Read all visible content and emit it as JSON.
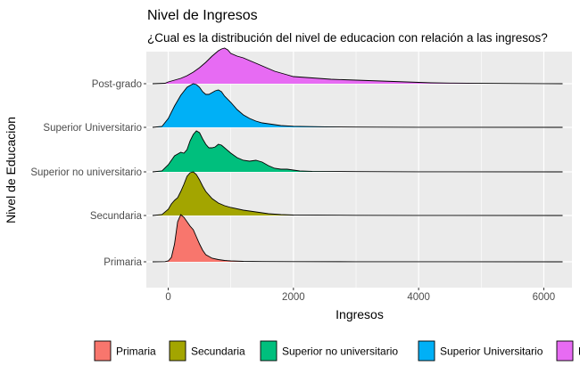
{
  "chart_data": {
    "type": "area",
    "subtype": "ridgeline-density",
    "title": "Nivel de Ingresos",
    "subtitle": "¿Cual es la distribución del nivel de educacion con relación a las ingresos?",
    "xlabel": "Ingresos",
    "ylabel": "Nivel de Educacion",
    "xlim": [
      -350,
      6450
    ],
    "x_ticks": [
      0,
      2000,
      4000,
      6000
    ],
    "x_tick_labels": [
      "0",
      "2000",
      "4000",
      "6000"
    ],
    "categories": [
      "Primaria",
      "Secundaria",
      "Superior no universitario",
      "Superior Universitario",
      "Post-grado"
    ],
    "legend_position": "bottom",
    "legend_labels": [
      "Primaria",
      "Secundaria",
      "Superior no universitario",
      "Superior Universitario",
      "Post-grado"
    ],
    "grid": true,
    "x_range_drawn": [
      -250,
      6300
    ],
    "series": [
      {
        "name": "Primaria",
        "color": "#F8766D",
        "points": [
          [
            -250,
            0
          ],
          [
            -50,
            0.2
          ],
          [
            0,
            1
          ],
          [
            50,
            5
          ],
          [
            100,
            20
          ],
          [
            150,
            45
          ],
          [
            200,
            53
          ],
          [
            250,
            50
          ],
          [
            300,
            45
          ],
          [
            350,
            40
          ],
          [
            400,
            36
          ],
          [
            450,
            28
          ],
          [
            500,
            20
          ],
          [
            550,
            13
          ],
          [
            600,
            8
          ],
          [
            700,
            4
          ],
          [
            800,
            2.5
          ],
          [
            900,
            1.5
          ],
          [
            1000,
            1
          ],
          [
            1200,
            0.5
          ],
          [
            1500,
            0.3
          ],
          [
            2000,
            0.2
          ],
          [
            3000,
            0.1
          ],
          [
            4000,
            0.05
          ],
          [
            6300,
            0
          ]
        ]
      },
      {
        "name": "Secundaria",
        "color": "#A3A500",
        "points": [
          [
            -250,
            0
          ],
          [
            -100,
            1
          ],
          [
            0,
            7
          ],
          [
            50,
            13
          ],
          [
            100,
            17
          ],
          [
            150,
            20
          ],
          [
            200,
            27
          ],
          [
            250,
            35
          ],
          [
            300,
            44
          ],
          [
            350,
            48
          ],
          [
            400,
            49
          ],
          [
            450,
            46
          ],
          [
            500,
            40
          ],
          [
            550,
            33
          ],
          [
            600,
            27
          ],
          [
            700,
            19
          ],
          [
            800,
            14
          ],
          [
            900,
            11
          ],
          [
            1000,
            9
          ],
          [
            1200,
            6
          ],
          [
            1400,
            4
          ],
          [
            1600,
            2
          ],
          [
            1800,
            1
          ],
          [
            2000,
            0.5
          ],
          [
            3000,
            0.2
          ],
          [
            4000,
            0.1
          ],
          [
            6300,
            0
          ]
        ]
      },
      {
        "name": "Superior no universitario",
        "color": "#00BF7D",
        "points": [
          [
            -250,
            0
          ],
          [
            -100,
            1
          ],
          [
            0,
            8
          ],
          [
            100,
            18
          ],
          [
            200,
            22
          ],
          [
            250,
            21
          ],
          [
            300,
            25
          ],
          [
            350,
            35
          ],
          [
            400,
            42
          ],
          [
            450,
            46
          ],
          [
            500,
            44
          ],
          [
            550,
            37
          ],
          [
            600,
            31
          ],
          [
            650,
            27
          ],
          [
            700,
            27
          ],
          [
            750,
            28
          ],
          [
            800,
            31
          ],
          [
            850,
            30
          ],
          [
            900,
            27
          ],
          [
            1000,
            21
          ],
          [
            1100,
            16
          ],
          [
            1200,
            13
          ],
          [
            1300,
            12
          ],
          [
            1400,
            13
          ],
          [
            1500,
            11
          ],
          [
            1600,
            7
          ],
          [
            1700,
            4
          ],
          [
            1800,
            3
          ],
          [
            1900,
            3
          ],
          [
            2000,
            2
          ],
          [
            2100,
            1
          ],
          [
            2300,
            0.6
          ],
          [
            3000,
            0.3
          ],
          [
            4000,
            0.1
          ],
          [
            6300,
            0
          ]
        ]
      },
      {
        "name": "Superior Universitario",
        "color": "#00B0F6",
        "points": [
          [
            -250,
            0
          ],
          [
            -100,
            1
          ],
          [
            0,
            10
          ],
          [
            100,
            24
          ],
          [
            200,
            36
          ],
          [
            300,
            45
          ],
          [
            400,
            49
          ],
          [
            450,
            48
          ],
          [
            500,
            45
          ],
          [
            550,
            40
          ],
          [
            600,
            37
          ],
          [
            650,
            37
          ],
          [
            700,
            39
          ],
          [
            750,
            41
          ],
          [
            800,
            42
          ],
          [
            850,
            40
          ],
          [
            900,
            35
          ],
          [
            1000,
            28
          ],
          [
            1100,
            20
          ],
          [
            1200,
            14
          ],
          [
            1300,
            10
          ],
          [
            1400,
            7
          ],
          [
            1500,
            5
          ],
          [
            1600,
            4
          ],
          [
            1800,
            2
          ],
          [
            2000,
            1.2
          ],
          [
            2500,
            0.6
          ],
          [
            3000,
            0.3
          ],
          [
            4000,
            0.1
          ],
          [
            6300,
            0
          ]
        ]
      },
      {
        "name": "Post-grado",
        "color": "#E76BF3",
        "points": [
          [
            -250,
            0
          ],
          [
            -50,
            0.5
          ],
          [
            0,
            2
          ],
          [
            200,
            6
          ],
          [
            300,
            9
          ],
          [
            400,
            13
          ],
          [
            500,
            18
          ],
          [
            600,
            24
          ],
          [
            700,
            31
          ],
          [
            800,
            37
          ],
          [
            850,
            39
          ],
          [
            900,
            40
          ],
          [
            950,
            38
          ],
          [
            1000,
            34
          ],
          [
            1100,
            31
          ],
          [
            1200,
            29
          ],
          [
            1300,
            26
          ],
          [
            1400,
            23
          ],
          [
            1500,
            20
          ],
          [
            1600,
            17
          ],
          [
            1700,
            14
          ],
          [
            1800,
            12
          ],
          [
            1900,
            10
          ],
          [
            2000,
            8
          ],
          [
            2200,
            7
          ],
          [
            2400,
            6
          ],
          [
            2600,
            5
          ],
          [
            2800,
            4.5
          ],
          [
            3000,
            4
          ],
          [
            3200,
            3.5
          ],
          [
            3400,
            3
          ],
          [
            3600,
            2.5
          ],
          [
            3800,
            2
          ],
          [
            4000,
            1.5
          ],
          [
            4200,
            1
          ],
          [
            4500,
            0.7
          ],
          [
            5000,
            0.4
          ],
          [
            6000,
            0.1
          ],
          [
            6300,
            0
          ]
        ]
      }
    ]
  }
}
